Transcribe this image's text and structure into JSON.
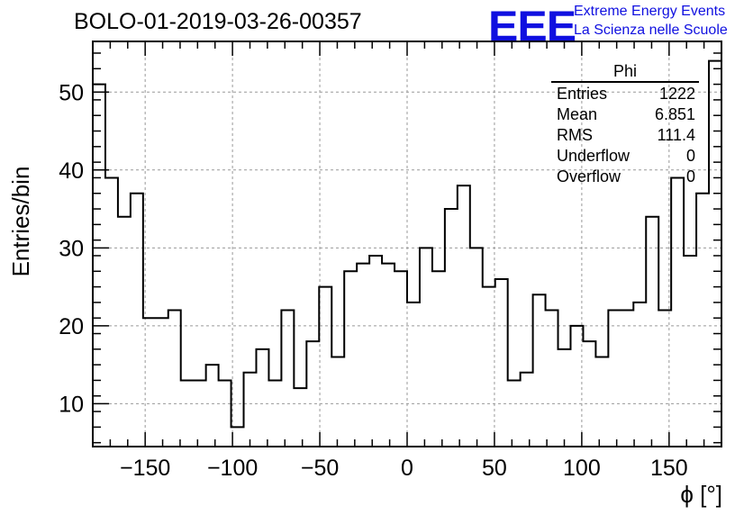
{
  "header": {
    "title": "BOLO-01-2019-03-26-00357",
    "logo_text": "EEE",
    "logo_line1": "Extreme Energy Events",
    "logo_line2": "La Scienza nelle Scuole",
    "logo_color": "#1010e0"
  },
  "stats_box": {
    "name": "Phi",
    "rows": [
      {
        "label": "Entries",
        "value": "1222"
      },
      {
        "label": "Mean",
        "value": "6.851"
      },
      {
        "label": "RMS",
        "value": "111.4"
      },
      {
        "label": "Underflow",
        "value": "0"
      },
      {
        "label": "Overflow",
        "value": "0"
      }
    ]
  },
  "chart_data": {
    "type": "histogram",
    "xlabel": "ϕ [°]",
    "ylabel": "Entries/bin",
    "xlim": [
      -180,
      180
    ],
    "ylim": [
      4.5,
      56.5
    ],
    "grid": true,
    "bin_width": 7.2,
    "x_ticks": [
      -150,
      -100,
      -50,
      0,
      50,
      100,
      150
    ],
    "x_tick_labels": [
      "−150",
      "−100",
      "−50",
      "0",
      "50",
      "100",
      "150"
    ],
    "y_ticks": [
      10,
      20,
      30,
      40,
      50
    ],
    "y_tick_labels": [
      "10",
      "20",
      "30",
      "40",
      "50"
    ],
    "bin_edges_start": -180,
    "values": [
      51,
      39,
      34,
      37,
      21,
      21,
      22,
      13,
      13,
      15,
      13,
      7,
      14,
      17,
      13,
      22,
      12,
      18,
      25,
      16,
      27,
      28,
      29,
      28,
      27,
      23,
      30,
      27,
      35,
      38,
      30,
      25,
      26,
      13,
      14,
      24,
      22,
      17,
      20,
      18,
      16,
      22,
      22,
      23,
      34,
      22,
      39,
      29,
      37,
      54
    ],
    "line_color": "#000000"
  }
}
